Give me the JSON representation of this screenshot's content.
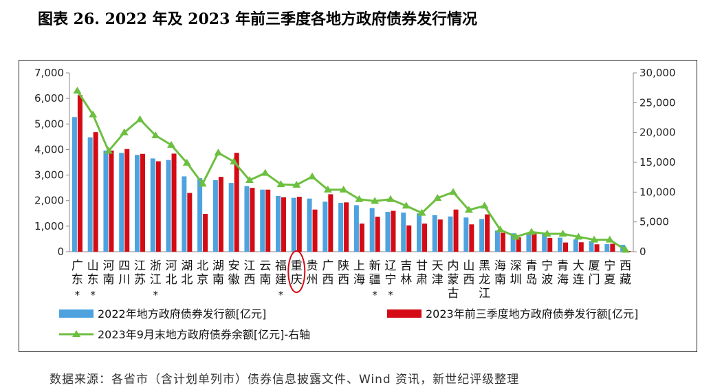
{
  "figure_title": "图表 26.  2022 年及 2023 年前三季度各地方政府债券发行情况",
  "source_note": "数据来源：各省市（含计划单列市）债券信息披露文件、Wind 资讯，新世纪评级整理",
  "chart_data": {
    "type": "bar",
    "title": "",
    "categories": [
      "广东",
      "山东",
      "河南",
      "四川",
      "江苏",
      "浙江",
      "河北",
      "湖北",
      "北京",
      "湖南",
      "安徽",
      "江西",
      "云南",
      "福建",
      "重庆",
      "贵州",
      "广西",
      "陕西",
      "上海",
      "新疆",
      "辽宁",
      "吉林",
      "甘肃",
      "天津",
      "内蒙古",
      "山西",
      "黑龙江",
      "海南",
      "深圳",
      "青岛",
      "宁波",
      "青海",
      "大连",
      "厦门",
      "宁夏",
      "西藏"
    ],
    "starred": [
      true,
      true,
      false,
      false,
      false,
      true,
      false,
      false,
      false,
      false,
      false,
      false,
      false,
      true,
      false,
      false,
      false,
      false,
      false,
      true,
      true,
      false,
      false,
      false,
      false,
      false,
      false,
      false,
      false,
      false,
      false,
      false,
      false,
      false,
      false,
      false
    ],
    "star_symbol": "*",
    "highlighted_category": "重庆",
    "series": [
      {
        "name": "2022年地方政府债券发行额[亿元]",
        "kind": "bar",
        "axis": "left",
        "color": "#4ea3df",
        "values": [
          5270,
          4480,
          3960,
          3870,
          3790,
          3650,
          3590,
          2950,
          2880,
          2800,
          2690,
          2570,
          2430,
          2180,
          2110,
          2080,
          1960,
          1910,
          1820,
          1710,
          1560,
          1530,
          1500,
          1430,
          1380,
          1340,
          1280,
          830,
          720,
          710,
          700,
          550,
          480,
          420,
          300,
          270
        ]
      },
      {
        "name": "2023年前三季度地方政府债券发行额[亿元]",
        "kind": "bar",
        "axis": "left",
        "color": "#d40a14",
        "values": [
          6130,
          4680,
          3960,
          4020,
          3830,
          3540,
          3840,
          2300,
          1480,
          2930,
          3870,
          2500,
          2430,
          2130,
          2150,
          1650,
          2250,
          1930,
          1100,
          1370,
          1600,
          1030,
          1100,
          1260,
          1650,
          1070,
          1460,
          740,
          560,
          710,
          540,
          360,
          370,
          290,
          310,
          30
        ]
      },
      {
        "name": "2023年9月末地方政府债券余额[亿元]-右轴",
        "kind": "line",
        "axis": "right",
        "color": "#6cbf3f",
        "values": [
          27000,
          23000,
          16900,
          20000,
          22200,
          19500,
          17900,
          14900,
          11400,
          16600,
          15100,
          12000,
          13200,
          11300,
          11200,
          12600,
          10400,
          10400,
          8800,
          8500,
          8800,
          7700,
          6500,
          9000,
          10000,
          7000,
          7700,
          3700,
          2500,
          3300,
          3000,
          3000,
          2500,
          2000,
          2000,
          300
        ]
      }
    ],
    "y_left": {
      "min": 0,
      "max": 7000,
      "step": 1000,
      "tick_labels": [
        "0",
        "1,000",
        "2,000",
        "3,000",
        "4,000",
        "5,000",
        "6,000",
        "7,000"
      ]
    },
    "y_right": {
      "min": 0,
      "max": 30000,
      "step": 5000,
      "tick_labels": [
        "0",
        "5,000",
        "10,000",
        "15,000",
        "20,000",
        "25,000",
        "30,000"
      ]
    },
    "grid": false,
    "legend_position": "bottom"
  }
}
